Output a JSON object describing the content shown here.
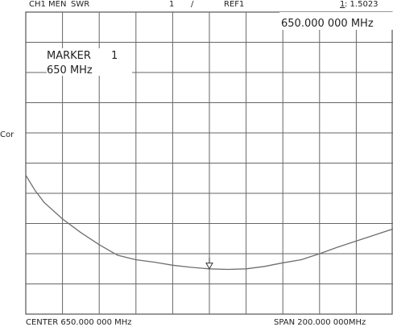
{
  "header": {
    "channel": "CH1 MEN",
    "format": "SWR",
    "scale_div": "1",
    "slash": "/",
    "reference": "REF1",
    "marker_index": "1",
    "marker_readout": ": 1.5023"
  },
  "marker_box": {
    "title": "MARKER",
    "number": "1",
    "freq": "650 MHz",
    "readout_top_right": "650.000  000  MHz"
  },
  "side_label": "Cor",
  "footer": {
    "center": "CENTER  650.000  000  MHz",
    "span": "SPAN  200.000  000MHz"
  },
  "chart_data": {
    "type": "line",
    "x_unit": "MHz",
    "x_range": [
      550,
      750
    ],
    "y_range": [
      0,
      10
    ],
    "grid": true,
    "divisions_x": 10,
    "divisions_y": 10,
    "marker": {
      "index": 1,
      "x": 650,
      "y": 1.5023
    },
    "series": [
      {
        "color": "#6e6e6e",
        "x": [
          550,
          555,
          560,
          570,
          580,
          590,
          600,
          610,
          620,
          630,
          640,
          650,
          660,
          670,
          680,
          690,
          700,
          710,
          720,
          730,
          740,
          750
        ],
        "y": [
          4.6,
          4.1,
          3.7,
          3.15,
          2.7,
          2.3,
          1.95,
          1.8,
          1.72,
          1.62,
          1.55,
          1.5,
          1.48,
          1.5,
          1.58,
          1.7,
          1.8,
          2.0,
          2.22,
          2.42,
          2.62,
          2.82
        ]
      }
    ]
  }
}
